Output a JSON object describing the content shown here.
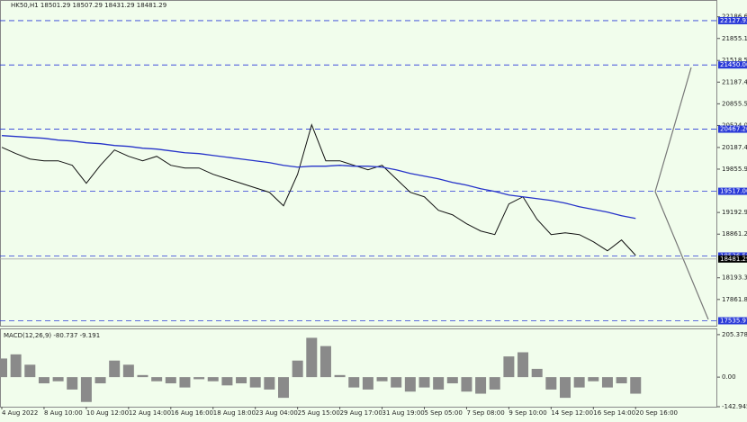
{
  "chart_data": [
    {
      "type": "line",
      "title": "HK50,H1  18501.29 18507.29 18431.29 18481.29",
      "categories": [
        "4 Aug 2022",
        null,
        null,
        "8 Aug 10:00",
        null,
        null,
        "10 Aug 12:00",
        null,
        null,
        "12 Aug 14:00",
        null,
        null,
        "16 Aug 16:00",
        null,
        null,
        "18 Aug 18:00",
        null,
        null,
        "23 Aug 04:00",
        null,
        null,
        "25 Aug 15:00",
        null,
        null,
        "29 Aug 17:00",
        null,
        null,
        "31 Aug 19:00",
        null,
        null,
        "5 Sep 05:00",
        null,
        null,
        "7 Sep 08:00",
        null,
        null,
        "9 Sep 10:00",
        null,
        null,
        "14 Sep 12:00",
        null,
        null,
        "16 Sep 14:00",
        null,
        null,
        "20 Sep 16:00"
      ],
      "series": [
        {
          "name": "HK50",
          "color": "#111111",
          "values": [
            20189.9,
            20093.6,
            20010.9,
            19983.4,
            19983.4,
            19914.6,
            19639.1,
            19914.6,
            20148.6,
            20052.2,
            19983.4,
            20052.2,
            19914.6,
            19873.2,
            19873.2,
            19776.8,
            19708.0,
            19639.1,
            19570.3,
            19501.4,
            19294.9,
            19776.8,
            20534.2,
            19983.4,
            19983.4,
            19914.6,
            19845.7,
            19914.6,
            19708.0,
            19501.4,
            19432.6,
            19226.0,
            19157.2,
            19019.5,
            18909.4,
            18854.3,
            19322.4,
            19432.6,
            19088.3,
            18854.3,
            18881.8,
            18854.3,
            18744.1,
            18606.6,
            18771.6,
            18537.5
          ]
        },
        {
          "name": "MA",
          "color": "#2633c9",
          "values": [
            20369.0,
            20355.2,
            20341.4,
            20327.6,
            20300.1,
            20286.3,
            20258.8,
            20245.0,
            20217.5,
            20203.7,
            20176.2,
            20162.4,
            20134.9,
            20107.3,
            20093.6,
            20066.0,
            20038.5,
            20010.9,
            19983.4,
            19955.9,
            19914.6,
            19887.0,
            19900.8,
            19900.8,
            19914.6,
            19900.8,
            19900.8,
            19887.0,
            19845.7,
            19790.6,
            19749.3,
            19708.0,
            19652.9,
            19611.6,
            19556.6,
            19515.2,
            19460.1,
            19432.6,
            19405.1,
            19377.5,
            19336.2,
            19281.1,
            19239.8,
            19198.6,
            19143.4,
            19102.1
          ]
        }
      ],
      "ylim": [
        17460,
        22430
      ],
      "yticks": [
        {
          "value": 22186.6,
          "label": "22186.60"
        },
        {
          "value": 21855.15,
          "label": "21855.15"
        },
        {
          "value": 21518.5,
          "label": "21518.50"
        },
        {
          "value": 21187.4,
          "label": "21187.40"
        },
        {
          "value": 20855.5,
          "label": "20855.50"
        },
        {
          "value": 20524.0,
          "label": "20524.00"
        },
        {
          "value": 20187.4,
          "label": "20187.40"
        },
        {
          "value": 19855.9,
          "label": "19855.90"
        },
        {
          "value": 19192.9,
          "label": "19192.90"
        },
        {
          "value": 18861.2,
          "label": "18861.20"
        },
        {
          "value": 18193.3,
          "label": "18193.30"
        },
        {
          "value": 17861.8,
          "label": "17861.80"
        }
      ],
      "levels": [
        {
          "value": 22127.93,
          "label": "22127.93"
        },
        {
          "value": 21450,
          "label": "21450.00"
        },
        {
          "value": 20467.2,
          "label": "20467.20"
        },
        {
          "value": 19517,
          "label": "19517.00"
        },
        {
          "value": 18526.58,
          "label": "18526.58"
        },
        {
          "value": 17535.97,
          "label": "17535.97"
        }
      ],
      "level_color": "#2a3ad8",
      "current_price": {
        "value": 18481.29,
        "label": "18481.29"
      },
      "grid": false
    },
    {
      "type": "bar",
      "title": "MACD(12,26,9) -80.737 -9.191",
      "color": "#8a8a8a",
      "values": [
        90,
        110,
        60,
        -30,
        -20,
        -60,
        -120,
        -30,
        80,
        60,
        10,
        -20,
        -30,
        -50,
        -10,
        -20,
        -40,
        -30,
        -50,
        -60,
        -100,
        80,
        190,
        150,
        10,
        -50,
        -60,
        -20,
        -50,
        -70,
        -50,
        -60,
        -30,
        -70,
        -80,
        -60,
        100,
        120,
        40,
        -60,
        -100,
        -50,
        -20,
        -50,
        -30,
        -80
      ],
      "ylim": [
        -142.945,
        231
      ],
      "yticks": [
        205.378,
        {
          "value": 0,
          "label": "0.00"
        },
        -142.945
      ]
    }
  ]
}
